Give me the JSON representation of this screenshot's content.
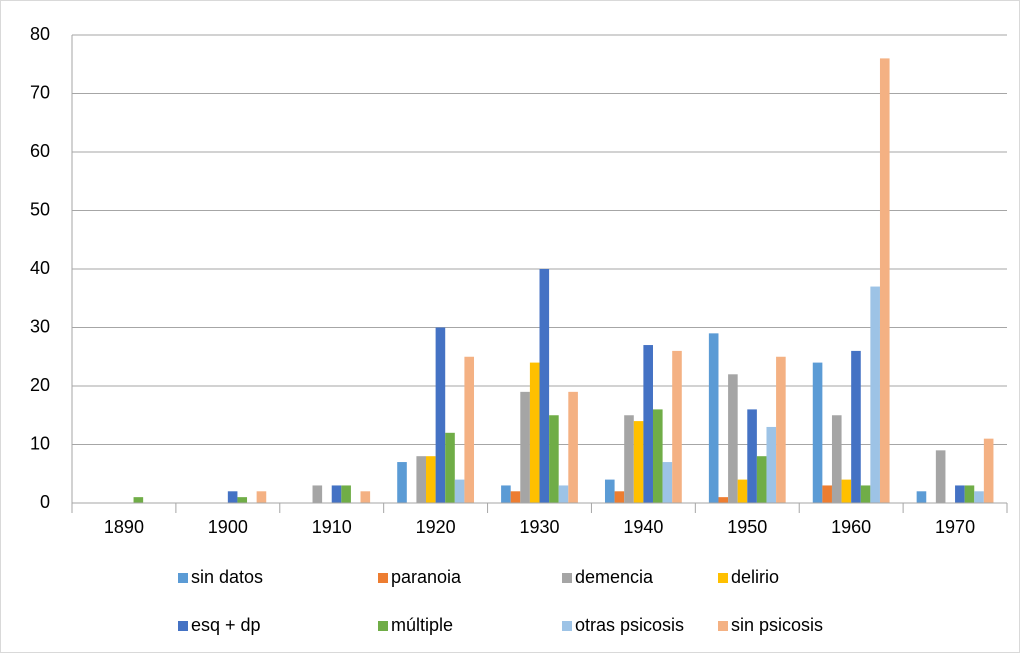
{
  "chart_data": {
    "type": "bar",
    "categories": [
      "1890",
      "1900",
      "1910",
      "1920",
      "1930",
      "1940",
      "1950",
      "1960",
      "1970"
    ],
    "series": [
      {
        "name": "sin datos",
        "color": "#5b9bd5",
        "values": [
          0,
          0,
          0,
          7,
          3,
          4,
          29,
          24,
          2
        ]
      },
      {
        "name": "paranoia",
        "color": "#ed7d31",
        "values": [
          0,
          0,
          0,
          0,
          2,
          2,
          1,
          3,
          0
        ]
      },
      {
        "name": "demencia",
        "color": "#a5a5a5",
        "values": [
          0,
          0,
          3,
          8,
          19,
          15,
          22,
          15,
          9
        ]
      },
      {
        "name": "delirio",
        "color": "#ffc000",
        "values": [
          0,
          0,
          0,
          8,
          24,
          14,
          4,
          4,
          0
        ]
      },
      {
        "name": "esq + dp",
        "color": "#4472c4",
        "values": [
          0,
          2,
          3,
          30,
          40,
          27,
          16,
          26,
          3
        ]
      },
      {
        "name": "múltiple",
        "color": "#70ad47",
        "values": [
          1,
          1,
          3,
          12,
          15,
          16,
          8,
          3,
          3
        ]
      },
      {
        "name": "otras psicosis",
        "color": "#9dc3e6",
        "values": [
          0,
          0,
          0,
          4,
          3,
          7,
          13,
          37,
          2
        ]
      },
      {
        "name": "sin psicosis",
        "color": "#f4b183",
        "values": [
          0,
          2,
          2,
          25,
          19,
          26,
          25,
          76,
          11
        ]
      }
    ],
    "ylim": [
      0,
      80
    ],
    "yticks": [
      0,
      10,
      20,
      30,
      40,
      50,
      60,
      70,
      80
    ],
    "grid": true,
    "legend": "bottom"
  }
}
